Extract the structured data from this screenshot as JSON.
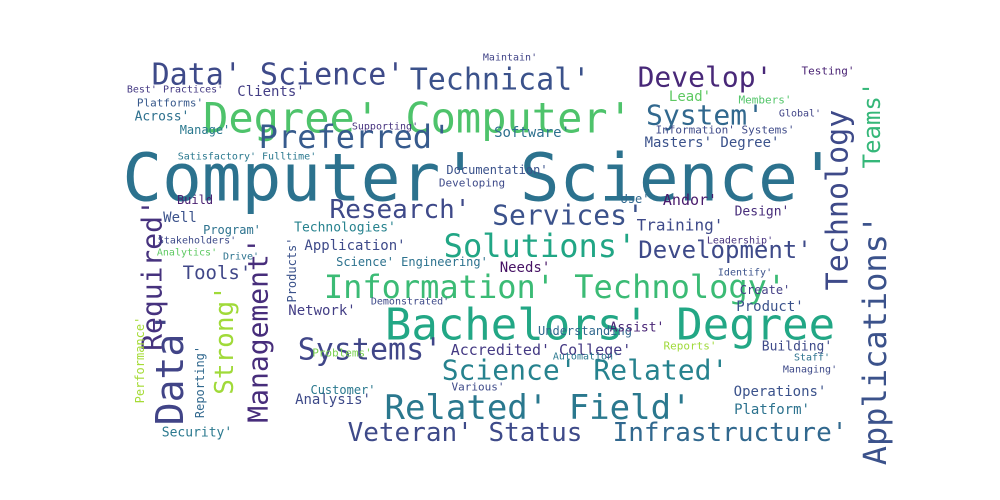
{
  "words": [
    {
      "text": "Computer' Science'",
      "color": "#2c728e"
    },
    {
      "text": "Degree' Computer'",
      "color": "#4ec36b"
    },
    {
      "text": "Bachelors' Degree",
      "color": "#22a785"
    },
    {
      "text": "Data' Science'",
      "color": "#3e4a89"
    },
    {
      "text": "Technical'",
      "color": "#3b528b"
    },
    {
      "text": "Develop'",
      "color": "#482878"
    },
    {
      "text": "Preferred'",
      "color": "#375b8d"
    },
    {
      "text": "System'",
      "color": "#31688e"
    },
    {
      "text": "Technology",
      "color": "#3e4a89"
    },
    {
      "text": "Teams'",
      "color": "#35b779"
    },
    {
      "text": "Applications'",
      "color": "#3b528b"
    },
    {
      "text": "Research'",
      "color": "#3e4989"
    },
    {
      "text": "Services'",
      "color": "#3b528b"
    },
    {
      "text": "Solutions'",
      "color": "#21a685"
    },
    {
      "text": "Development'",
      "color": "#3e4a89"
    },
    {
      "text": "Information' Technology'",
      "color": "#3bbb75"
    },
    {
      "text": "Systems'",
      "color": "#404688"
    },
    {
      "text": "Science' Related'",
      "color": "#26828e"
    },
    {
      "text": "Related' Field'",
      "color": "#2a788e"
    },
    {
      "text": "Veteran' Status",
      "color": "#3e4a89"
    },
    {
      "text": "Infrastructure'",
      "color": "#31688e"
    },
    {
      "text": "Data'",
      "color": "#414487"
    },
    {
      "text": "Required'",
      "color": "#46327e"
    },
    {
      "text": "Strong'",
      "color": "#a0da39"
    },
    {
      "text": "Management'",
      "color": "#472d7b"
    },
    {
      "text": "Tools'",
      "color": "#404788"
    },
    {
      "text": "Masters' Degree'",
      "color": "#3b528b"
    },
    {
      "text": "Software'",
      "color": "#2d708e"
    },
    {
      "text": "Clients'",
      "color": "#433e85"
    },
    {
      "text": "Best' Practices'",
      "color": "#443983"
    },
    {
      "text": "Platforms'",
      "color": "#38598c"
    },
    {
      "text": "Across'",
      "color": "#2d708e"
    },
    {
      "text": "Manage'",
      "color": "#2a788e"
    },
    {
      "text": "Lead'",
      "color": "#5ec962"
    },
    {
      "text": "Members'",
      "color": "#52c569"
    },
    {
      "text": "Testing'",
      "color": "#482173"
    },
    {
      "text": "Documentation'",
      "color": "#3b528b"
    },
    {
      "text": "Developing",
      "color": "#3e4a89"
    },
    {
      "text": "Build",
      "color": "#481f70"
    },
    {
      "text": "Well",
      "color": "#3b528b"
    },
    {
      "text": "Program'",
      "color": "#2c728e"
    },
    {
      "text": "Technologies'",
      "color": "#26828e"
    },
    {
      "text": "Application'",
      "color": "#3e4a89"
    },
    {
      "text": "Training'",
      "color": "#3e4a89"
    },
    {
      "text": "Andor'",
      "color": "#481a6c"
    },
    {
      "text": "Design'",
      "color": "#472c7a"
    },
    {
      "text": "Use'",
      "color": "#31688e"
    },
    {
      "text": "Needs'",
      "color": "#471365"
    },
    {
      "text": "Network'",
      "color": "#433e85"
    },
    {
      "text": "Accredited' College'",
      "color": "#443983"
    },
    {
      "text": "Understanding",
      "color": "#31688e"
    },
    {
      "text": "Product'",
      "color": "#3b528b"
    },
    {
      "text": "Create'",
      "color": "#433e85"
    },
    {
      "text": "Assist'",
      "color": "#482475"
    },
    {
      "text": "Building'",
      "color": "#3e4a89"
    },
    {
      "text": "Operations'",
      "color": "#3b528b"
    },
    {
      "text": "Platform'",
      "color": "#2c728e"
    },
    {
      "text": "Analysis'",
      "color": "#3e4a89"
    },
    {
      "text": "Security'",
      "color": "#2a788e"
    },
    {
      "text": "Reporting'",
      "color": "#31688e"
    },
    {
      "text": "Science' Engineering'",
      "color": "#2c728e"
    },
    {
      "text": "Reports'",
      "color": "#9fda3a"
    },
    {
      "text": "Products'",
      "color": "#3b528b"
    },
    {
      "text": "Maintain'",
      "color": "#414487"
    },
    {
      "text": "Supporting'",
      "color": "#46327e"
    },
    {
      "text": "Customer'",
      "color": "#2a788e"
    },
    {
      "text": "Various'",
      "color": "#3e4a89"
    },
    {
      "text": "Problems'",
      "color": "#7ad151"
    },
    {
      "text": "Performance'",
      "color": "#a5db36"
    },
    {
      "text": "Analytics'",
      "color": "#5ec962"
    },
    {
      "text": "Stakeholders'",
      "color": "#3e4a89"
    },
    {
      "text": "Drive'",
      "color": "#2c728e"
    },
    {
      "text": "Satisfactory' Fulltime'",
      "color": "#2a788e"
    },
    {
      "text": "Information' Systems'",
      "color": "#3e4a89"
    },
    {
      "text": "Leadership'",
      "color": "#46327e"
    },
    {
      "text": "Identify'",
      "color": "#3b528b"
    },
    {
      "text": "Global'",
      "color": "#414487"
    },
    {
      "text": "Staff'",
      "color": "#2c728e"
    },
    {
      "text": "Managing'",
      "color": "#3e4a89"
    },
    {
      "text": "Automation'",
      "color": "#2a788e"
    },
    {
      "text": "Demonstrated'",
      "color": "#3e4a89"
    }
  ]
}
